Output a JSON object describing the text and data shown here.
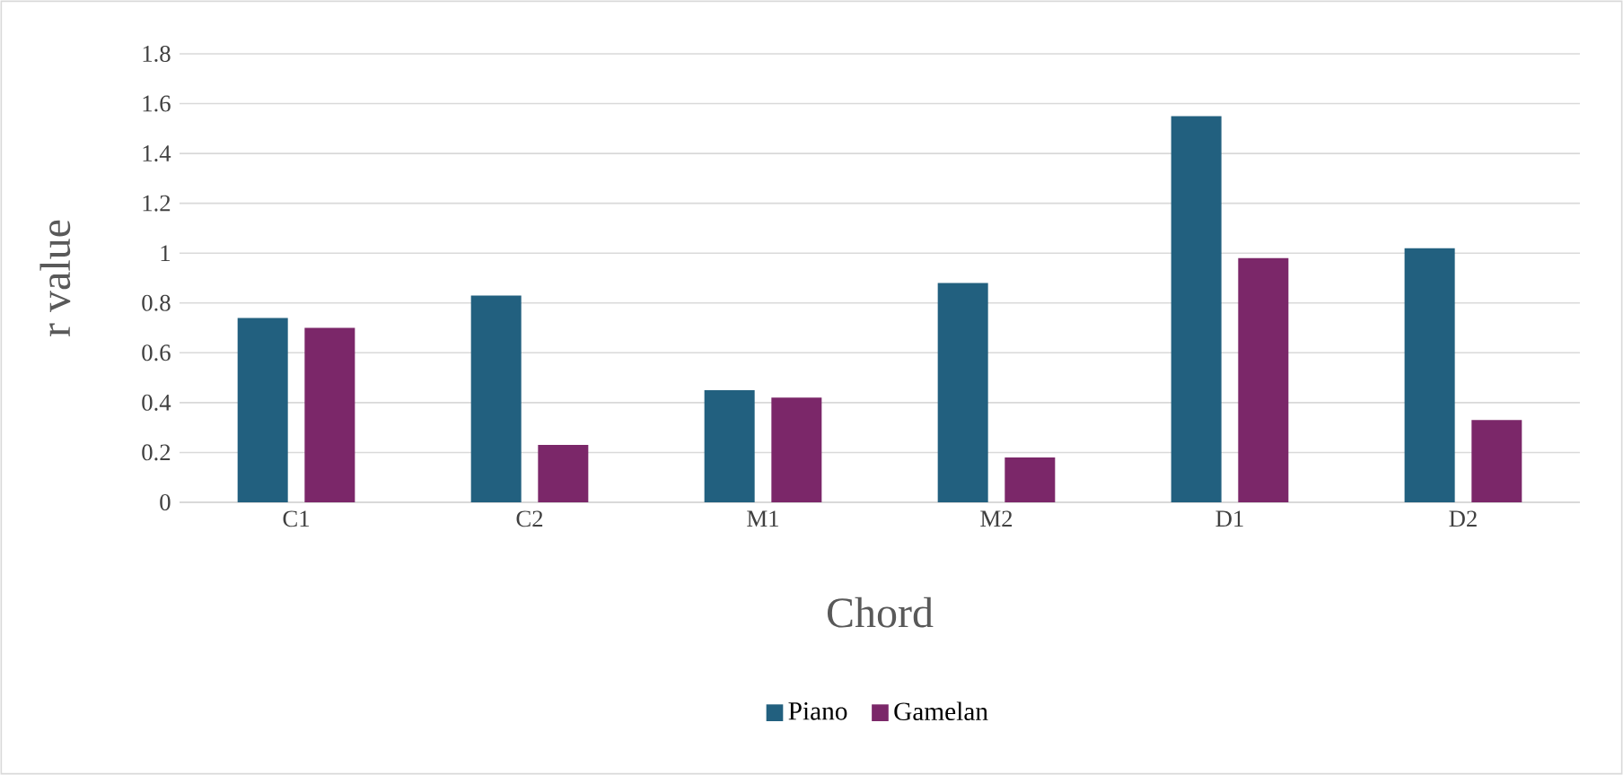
{
  "chart_data": {
    "type": "bar",
    "xlabel": "Chord",
    "ylabel": "r value",
    "categories": [
      "C1",
      "C2",
      "M1",
      "M2",
      "D1",
      "D2"
    ],
    "series": [
      {
        "name": "Piano",
        "color": "#22607f",
        "values": [
          0.74,
          0.83,
          0.45,
          0.88,
          1.55,
          1.02
        ]
      },
      {
        "name": "Gamelan",
        "color": "#7b2769",
        "values": [
          0.7,
          0.23,
          0.42,
          0.18,
          0.98,
          0.33
        ]
      }
    ],
    "ylim": [
      0,
      1.8
    ],
    "yticks": [
      0,
      0.2,
      0.4,
      0.6,
      0.8,
      1,
      1.2,
      1.4,
      1.6,
      1.8
    ],
    "grid": "y",
    "legend": "bottom"
  }
}
